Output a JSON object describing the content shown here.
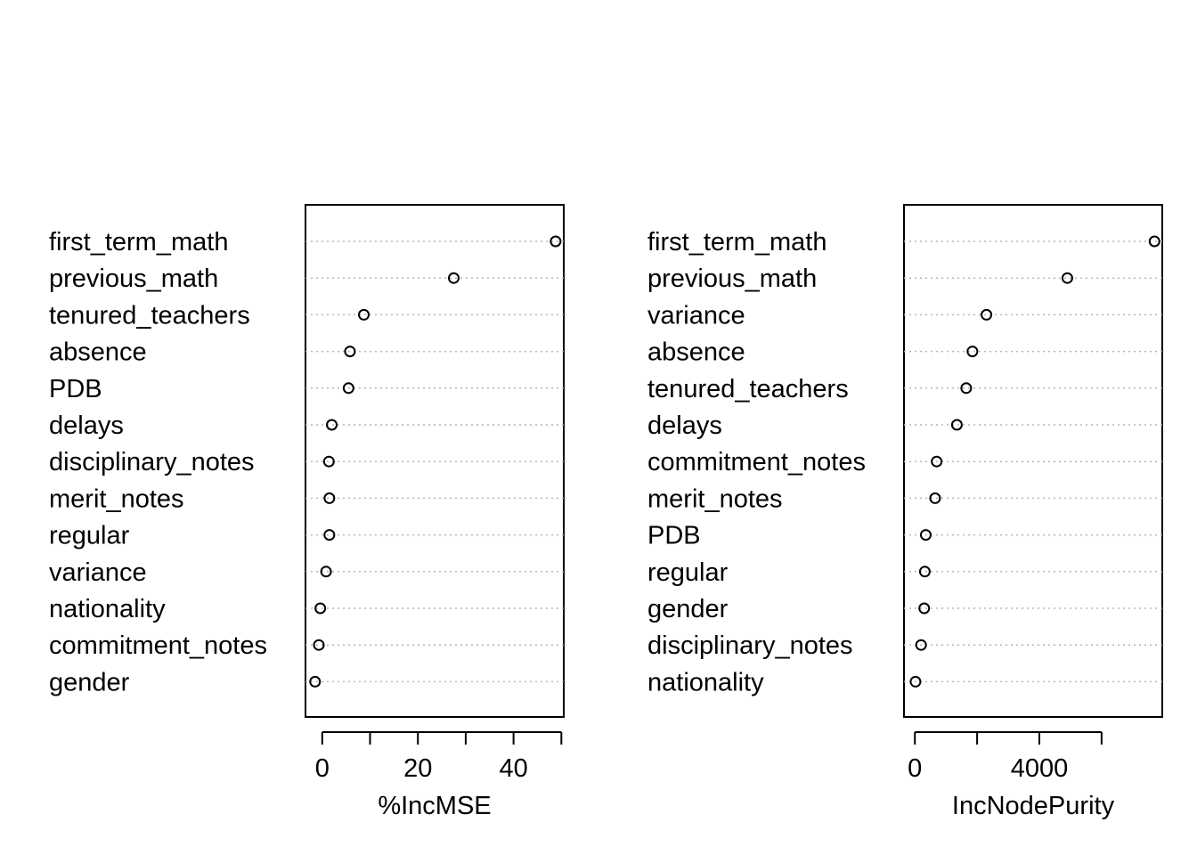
{
  "chart_data": [
    {
      "type": "scatter",
      "style": "dotchart",
      "xlabel": "%IncMSE",
      "xlim": [
        -3.5,
        50.5
      ],
      "ticks": [
        0,
        10,
        20,
        30,
        40,
        50
      ],
      "tick_labels": [
        "0",
        "",
        "20",
        "",
        "40",
        ""
      ],
      "categories": [
        "first_term_math",
        "previous_math",
        "tenured_teachers",
        "absence",
        "PDB",
        "delays",
        "disciplinary_notes",
        "merit_notes",
        "regular",
        "variance",
        "nationality",
        "commitment_notes",
        "gender"
      ],
      "values": [
        48.8,
        27.5,
        8.7,
        5.8,
        5.5,
        2.0,
        1.4,
        1.5,
        1.5,
        0.8,
        -0.4,
        -0.7,
        -1.5
      ]
    },
    {
      "type": "scatter",
      "style": "dotchart",
      "xlabel": "IncNodePurity",
      "xlim": [
        -350,
        7950
      ],
      "ticks": [
        0,
        2000,
        4000,
        6000
      ],
      "tick_labels": [
        "0",
        "",
        "4000",
        ""
      ],
      "categories": [
        "first_term_math",
        "previous_math",
        "variance",
        "absence",
        "tenured_teachers",
        "delays",
        "commitment_notes",
        "merit_notes",
        "PDB",
        "regular",
        "gender",
        "disciplinary_notes",
        "nationality"
      ],
      "values": [
        7700,
        4900,
        2300,
        1850,
        1650,
        1350,
        700,
        650,
        350,
        320,
        300,
        200,
        20
      ]
    }
  ]
}
